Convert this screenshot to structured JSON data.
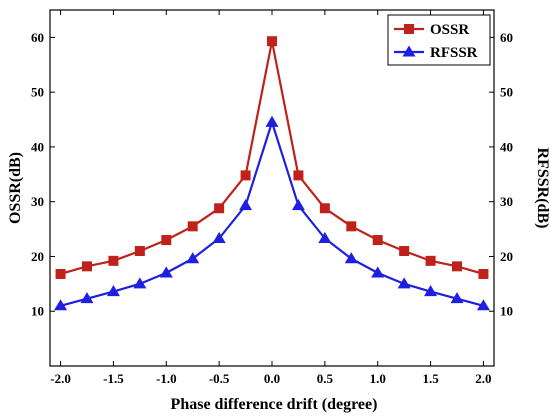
{
  "chart_data": {
    "type": "line",
    "title": "",
    "xlabel": "Phase difference drift (degree)",
    "ylabel_left": "OSSR(dB)",
    "ylabel_right": "RFSSR(dB)",
    "xlim": [
      -2.1,
      2.1
    ],
    "ylim": [
      0,
      65
    ],
    "x_ticks": [
      "-2.0",
      "-1.5",
      "-1.0",
      "-0.5",
      "0.0",
      "0.5",
      "1.0",
      "1.5",
      "2.0"
    ],
    "y_ticks_left": [
      "10",
      "20",
      "30",
      "40",
      "50",
      "60"
    ],
    "y_ticks_right": [
      "10",
      "20",
      "30",
      "40",
      "50",
      "60"
    ],
    "grid": false,
    "legend_position": "top-right",
    "x": [
      -2.0,
      -1.75,
      -1.5,
      -1.25,
      -1.0,
      -0.75,
      -0.5,
      -0.25,
      0.0,
      0.25,
      0.5,
      0.75,
      1.0,
      1.25,
      1.5,
      1.75,
      2.0
    ],
    "series": [
      {
        "name": "OSSR",
        "color": "#c0211a",
        "marker": "square",
        "axis": "left",
        "values": [
          16.8,
          18.2,
          19.2,
          21.0,
          23.0,
          25.5,
          28.8,
          34.8,
          59.3,
          34.8,
          28.8,
          25.5,
          23.0,
          21.0,
          19.2,
          18.2,
          16.8
        ]
      },
      {
        "name": "RFSSR",
        "color": "#1f1fe0",
        "marker": "triangle",
        "axis": "right",
        "values": [
          11.0,
          12.3,
          13.6,
          15.0,
          17.0,
          19.6,
          23.3,
          29.3,
          44.5,
          29.3,
          23.3,
          19.6,
          17.0,
          15.0,
          13.6,
          12.3,
          11.0
        ]
      }
    ]
  }
}
